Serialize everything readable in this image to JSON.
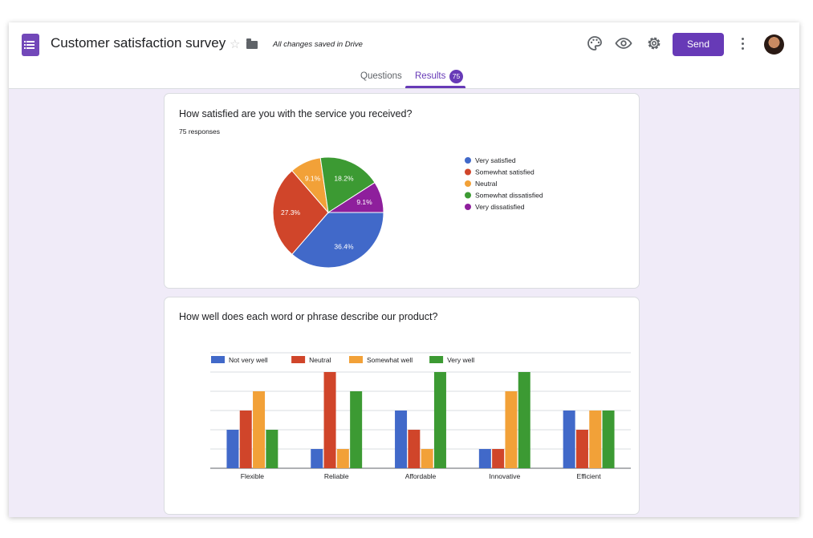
{
  "header": {
    "title": "Customer satisfaction survey",
    "save_status": "All changes saved in Drive",
    "send_label": "Send"
  },
  "tabs": {
    "questions_label": "Questions",
    "results_label": "Results",
    "results_count": "75"
  },
  "colors": {
    "accent": "#673ab7",
    "background": "#f0ebf8",
    "blue": "#4169c9",
    "red": "#d0452a",
    "orange": "#f2a138",
    "green": "#3c9a33",
    "purple": "#8e1f9c"
  },
  "icons": [
    "forms-app-icon",
    "star-icon",
    "folder-icon",
    "palette-icon",
    "eye-icon",
    "gear-icon",
    "more-vert-icon",
    "avatar"
  ],
  "question1": {
    "title": "How satisfied are you with the service you received?",
    "responses": "75 responses"
  },
  "question2": {
    "title": "How well does each word or phrase describe our product?"
  },
  "chart_data": [
    {
      "type": "pie",
      "title": "How satisfied are you with the service you received?",
      "categories": [
        "Very satisfied",
        "Somewhat satisfied",
        "Neutral",
        "Somewhat dissatisfied",
        "Very dissatisfied"
      ],
      "values": [
        36.4,
        27.3,
        9.1,
        18.2,
        9.1
      ],
      "labels": [
        "36.4%",
        "27.3%",
        "9.1%",
        "18.2%",
        "9.1%"
      ],
      "colors": [
        "#4169c9",
        "#d0452a",
        "#f2a138",
        "#3c9a33",
        "#8e1f9c"
      ],
      "legend": "right"
    },
    {
      "type": "bar",
      "title": "How well does each word or phrase describe our product?",
      "categories": [
        "Flexible",
        "Reliable",
        "Affordable",
        "Innovative",
        "Efficient"
      ],
      "series": [
        {
          "name": "Not very well",
          "color": "#4169c9",
          "values": [
            2,
            1,
            3,
            1,
            3
          ]
        },
        {
          "name": "Neutral",
          "color": "#d0452a",
          "values": [
            3,
            5,
            2,
            1,
            2
          ]
        },
        {
          "name": "Somewhat well",
          "color": "#f2a138",
          "values": [
            4,
            1,
            1,
            4,
            3
          ]
        },
        {
          "name": "Very well",
          "color": "#3c9a33",
          "values": [
            2,
            4,
            5,
            5,
            3
          ]
        }
      ],
      "ylim": [
        0,
        6
      ],
      "grid": true,
      "legend": "top-left"
    }
  ]
}
